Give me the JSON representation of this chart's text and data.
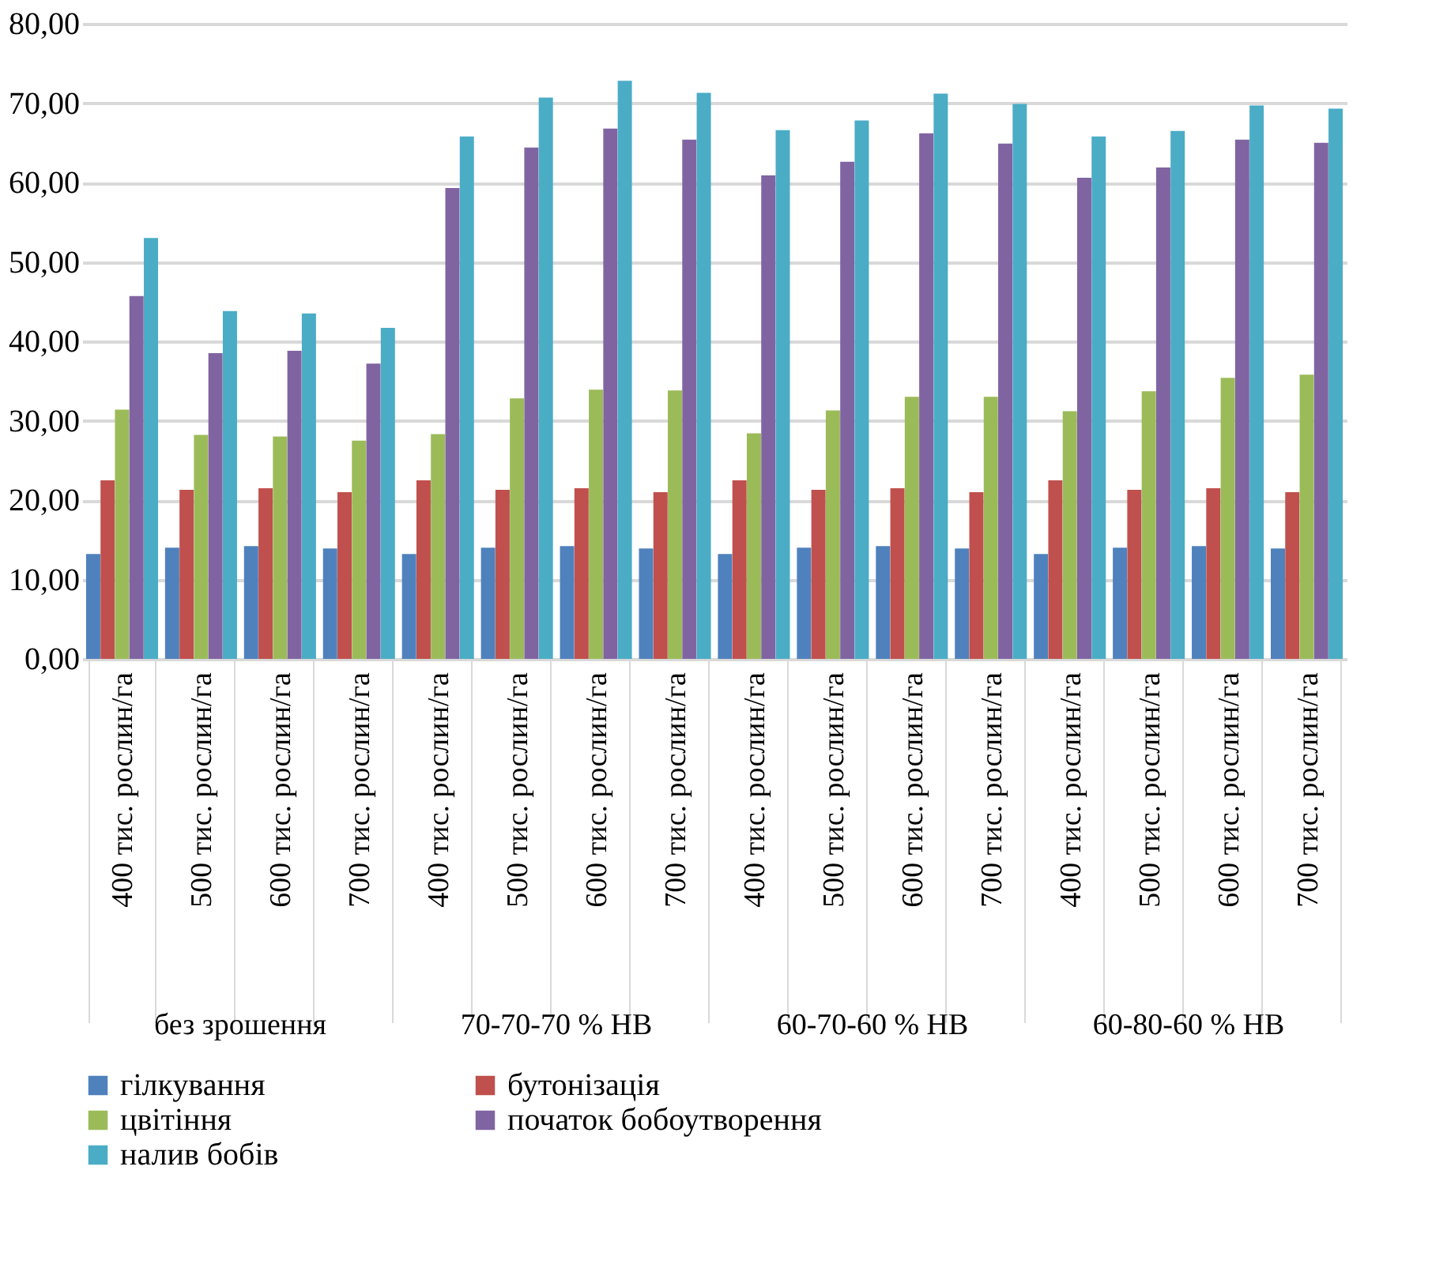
{
  "chart_data": {
    "type": "bar",
    "categories": [
      "400 тис. рослин/га",
      "500 тис. рослин/га",
      "600 тис. рослин/га",
      "700 тис. рослин/га",
      "400 тис. рослин/га",
      "500 тис. рослин/га",
      "600 тис. рослин/га",
      "700 тис. рослин/га",
      "400 тис. рослин/га",
      "500 тис. рослин/га",
      "600 тис. рослин/га",
      "700 тис. рослин/га",
      "400 тис. рослин/га",
      "500 тис. рослин/га",
      "600 тис. рослин/га",
      "700 тис. рослин/га"
    ],
    "series": [
      {
        "name": "гілкування",
        "color": "#4f81bd",
        "values": [
          13.2,
          14.0,
          14.2,
          13.9,
          13.2,
          14.0,
          14.2,
          13.9,
          13.2,
          14.0,
          14.2,
          13.9,
          13.2,
          14.0,
          14.2,
          13.9
        ]
      },
      {
        "name": "бутонізація",
        "color": "#c0504d",
        "values": [
          22.5,
          21.3,
          21.5,
          21.0,
          22.5,
          21.3,
          21.5,
          21.0,
          22.5,
          21.3,
          21.5,
          21.0,
          22.5,
          21.3,
          21.5,
          21.0
        ]
      },
      {
        "name": "цвітіння",
        "color": "#9bbb59",
        "values": [
          31.4,
          28.2,
          28.0,
          27.5,
          28.3,
          32.8,
          33.9,
          33.8,
          28.4,
          31.3,
          33.0,
          33.0,
          31.2,
          33.7,
          35.4,
          35.8
        ]
      },
      {
        "name": "початок бобоутворення",
        "color": "#8064a2",
        "values": [
          45.7,
          38.5,
          38.8,
          37.2,
          59.3,
          64.4,
          66.8,
          65.4,
          60.9,
          62.6,
          66.2,
          64.9,
          60.6,
          61.9,
          65.4,
          65.0
        ]
      },
      {
        "name": "налив бобів",
        "color": "#4bacc6",
        "values": [
          53.0,
          43.8,
          43.5,
          41.7,
          65.8,
          70.7,
          72.8,
          71.3,
          66.6,
          67.8,
          71.2,
          69.9,
          65.8,
          66.5,
          69.7,
          69.3
        ]
      }
    ],
    "annotations": [
      "без зрошення",
      "70-70-70 % НВ",
      "60-70-60 % НВ",
      "60-80-60 % НВ"
    ],
    "ylim": [
      0,
      80
    ],
    "yticks": [
      {
        "value": 0,
        "label": "0,00"
      },
      {
        "value": 10,
        "label": "10,00"
      },
      {
        "value": 20,
        "label": "20,00"
      },
      {
        "value": 30,
        "label": "30,00"
      },
      {
        "value": 40,
        "label": "40,00"
      },
      {
        "value": 50,
        "label": "50,00"
      },
      {
        "value": 60,
        "label": "60,00"
      },
      {
        "value": 70,
        "label": "70,00"
      },
      {
        "value": 80,
        "label": "80,00"
      }
    ],
    "grid": "y",
    "legend": "bottom"
  }
}
